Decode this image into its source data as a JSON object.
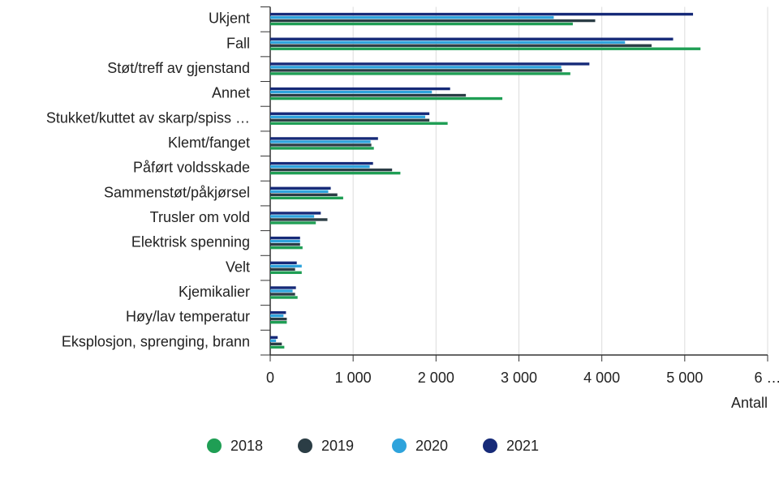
{
  "chart_data": {
    "type": "hbar",
    "categories": [
      "Ukjent",
      "Fall",
      "Støt/treff av gjenstand",
      "Annet",
      "Stukket/kuttet av skarp/spiss …",
      "Klemt/fanget",
      "Påført voldsskade",
      "Sammenstøt/påkjørsel",
      "Trusler om vold",
      "Elektrisk spenning",
      "Velt",
      "Kjemikalier",
      "Høy/lav temperatur",
      "Eksplosjon, sprenging, brann"
    ],
    "series": [
      {
        "name": "2018",
        "color": "#1f9e54",
        "values": [
          3650,
          5190,
          3620,
          2800,
          2140,
          1250,
          1570,
          880,
          550,
          390,
          380,
          330,
          200,
          170
        ]
      },
      {
        "name": "2019",
        "color": "#2b3d45",
        "values": [
          3920,
          4600,
          3520,
          2360,
          1920,
          1220,
          1470,
          810,
          690,
          360,
          300,
          300,
          200,
          140
        ]
      },
      {
        "name": "2020",
        "color": "#2ea3dc",
        "values": [
          3420,
          4280,
          3510,
          1950,
          1870,
          1210,
          1200,
          700,
          530,
          360,
          380,
          270,
          160,
          70
        ]
      },
      {
        "name": "2021",
        "color": "#162a78",
        "values": [
          5100,
          4860,
          3850,
          2170,
          1920,
          1300,
          1240,
          730,
          610,
          360,
          320,
          310,
          190,
          90
        ]
      }
    ],
    "xlim": [
      0,
      6000
    ],
    "xticks": [
      0,
      {
        "value": 1000,
        "label": "1 000"
      },
      {
        "value": 2000,
        "label": "2 000"
      },
      {
        "value": 3000,
        "label": "3 000"
      },
      {
        "value": 4000,
        "label": "4 000"
      },
      {
        "value": 5000,
        "label": "5 000"
      },
      {
        "value": 6000,
        "label": "6 …"
      }
    ],
    "x_label": "Antall",
    "grid": true
  }
}
